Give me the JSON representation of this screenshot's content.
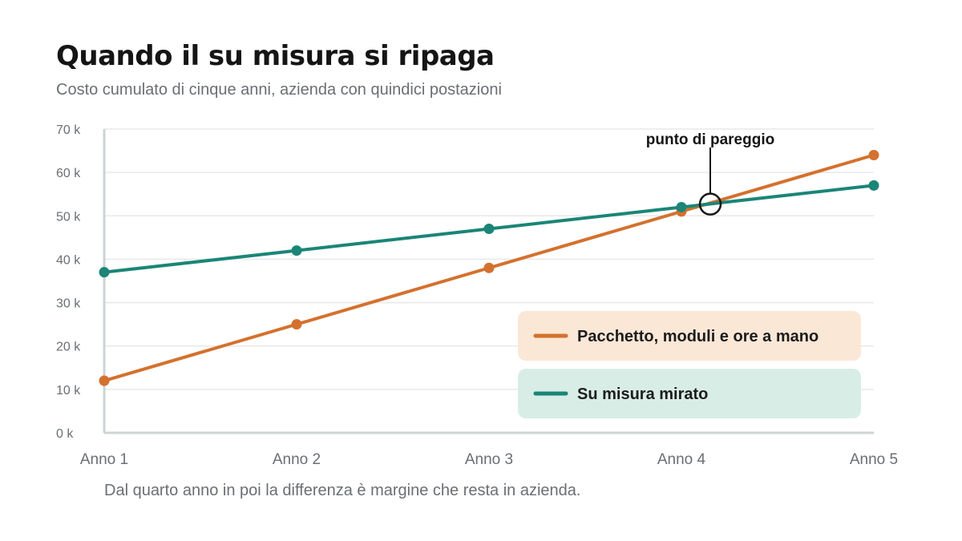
{
  "title": "Quando il su misura si ripaga",
  "subtitle": "Costo cumulato di cinque anni, azienda con quindici postazioni",
  "footnote": "Dal quarto anno in poi la differenza è margine che resta in azienda.",
  "chart_data": {
    "type": "line",
    "categories": [
      "Anno 1",
      "Anno 2",
      "Anno 3",
      "Anno 4",
      "Anno 5"
    ],
    "ylim": [
      0,
      70000
    ],
    "yticks": [
      0,
      10000,
      20000,
      30000,
      40000,
      50000,
      60000,
      70000
    ],
    "ytick_labels": [
      "0 k",
      "10 k",
      "20 k",
      "30 k",
      "40 k",
      "50 k",
      "60 k",
      "70 k"
    ],
    "grid": true,
    "legend_position": "bottom-right",
    "series": [
      {
        "name": "Pacchetto, moduli e ore a mano",
        "color": "#d4712e",
        "legend_bg": "#fbe7d6",
        "values": [
          12000,
          25000,
          38000,
          51000,
          64000
        ]
      },
      {
        "name": "Su misura mirato",
        "color": "#1b8577",
        "legend_bg": "#d9ede7",
        "values": [
          37000,
          42000,
          47000,
          52000,
          57000
        ]
      }
    ],
    "annotation": {
      "text": "punto di pareggio",
      "x": 4.15,
      "y": 52700
    }
  }
}
